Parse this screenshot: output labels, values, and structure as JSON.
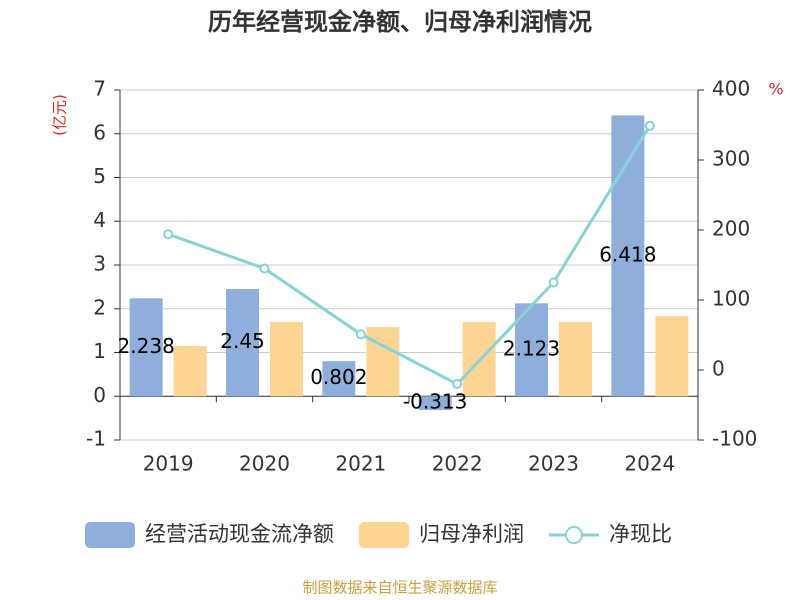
{
  "chart_data": {
    "type": "bar-line",
    "title": "历年经营现金净额、归母净利润情况",
    "y_label": "(亿元)",
    "y2_label": "%",
    "source": "制图数据来自恒生聚源数据库",
    "categories": [
      "2019",
      "2020",
      "2021",
      "2022",
      "2023",
      "2024"
    ],
    "series": [
      {
        "name": "经营活动现金流净额",
        "type": "bar",
        "color": "#8eaedb",
        "values": [
          2.238,
          2.45,
          0.802,
          -0.313,
          2.123,
          6.418
        ],
        "show_labels": true
      },
      {
        "name": "归母净利润",
        "type": "bar",
        "color": "#fdd592",
        "values": [
          1.15,
          1.7,
          1.58,
          1.7,
          1.7,
          1.83
        ]
      },
      {
        "name": "净现比",
        "type": "line",
        "axis": "y2",
        "color": "#86d3d6",
        "values": [
          194,
          145,
          51,
          -20,
          125,
          349
        ]
      }
    ],
    "ylim": [
      -1,
      7
    ],
    "yticks": [
      -1,
      0,
      1,
      2,
      3,
      4,
      5,
      6,
      7
    ],
    "y2lim": [
      -100,
      400
    ],
    "y2ticks": [
      -100,
      0,
      100,
      200,
      300,
      400
    ],
    "grid": true
  }
}
